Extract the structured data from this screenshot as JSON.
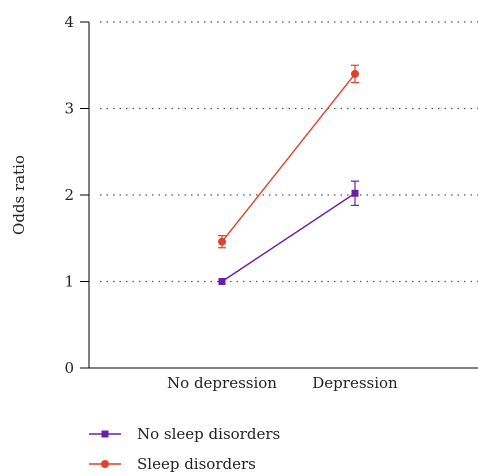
{
  "chart_data": {
    "type": "line",
    "categories": [
      "No depression",
      "Depression"
    ],
    "ylabel": "Odds ratio",
    "xlabel": "",
    "ylim": [
      0,
      4
    ],
    "yticks": [
      "0",
      "1",
      "2",
      "3",
      "4"
    ],
    "grid": "horizontal dotted",
    "legend": "bottom-left",
    "series": [
      {
        "name": "No sleep disorders",
        "color": "#6a1fa8",
        "marker": "square",
        "values": [
          1.0,
          2.02
        ],
        "err_low": [
          1.0,
          1.88
        ],
        "err_high": [
          1.0,
          2.16
        ]
      },
      {
        "name": "Sleep disorders",
        "color": "#e0402c",
        "marker": "circle",
        "values": [
          1.46,
          3.4
        ],
        "err_low": [
          1.39,
          3.3
        ],
        "err_high": [
          1.53,
          3.5
        ]
      }
    ]
  }
}
